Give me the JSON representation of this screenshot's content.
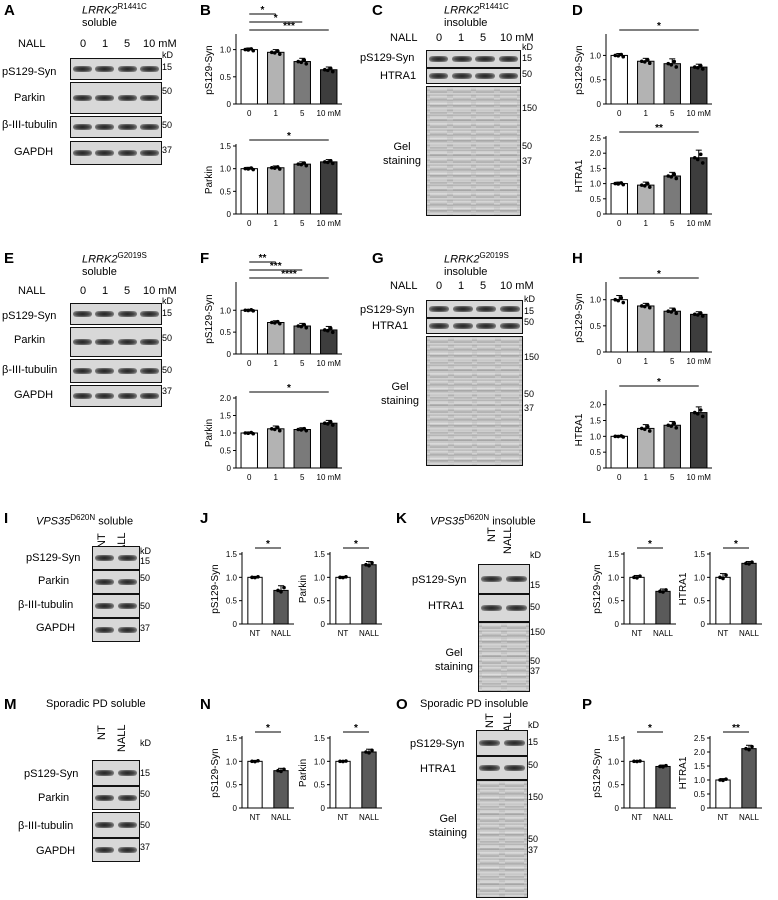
{
  "letters": [
    "A",
    "B",
    "C",
    "D",
    "E",
    "F",
    "G",
    "H",
    "I",
    "J",
    "K",
    "L",
    "M",
    "N",
    "O",
    "P"
  ],
  "panelA": {
    "title_gene": "LRRK2",
    "title_sup": "R1441C",
    "title_sub": "soluble",
    "nall": "NALL",
    "conc": [
      "0",
      "1",
      "5",
      "10 mM"
    ],
    "rows": [
      "pS129-Syn",
      "Parkin",
      "β-III-tubulin",
      "GAPDH"
    ],
    "kd": "kD",
    "mw": [
      "15",
      "50",
      "50",
      "37"
    ]
  },
  "panelC": {
    "title_gene": "LRRK2",
    "title_sup": "R1441C",
    "title_sub": "insoluble",
    "nall": "NALL",
    "conc": [
      "0",
      "1",
      "5",
      "10 mM"
    ],
    "rows": [
      "pS129-Syn",
      "HTRA1"
    ],
    "kd": "kD",
    "mw": [
      "15",
      "50"
    ],
    "gel_label": "Gel staining",
    "gel_mw": [
      "150",
      "50",
      "37"
    ]
  },
  "panelE": {
    "title_gene": "LRRK2",
    "title_sup": "G2019S",
    "title_sub": "soluble",
    "nall": "NALL",
    "conc": [
      "0",
      "1",
      "5",
      "10 mM"
    ],
    "rows": [
      "pS129-Syn",
      "Parkin",
      "β-III-tubulin",
      "GAPDH"
    ],
    "kd": "kD",
    "mw": [
      "15",
      "50",
      "50",
      "37"
    ]
  },
  "panelG": {
    "title_gene": "LRRK2",
    "title_sup": "G2019S",
    "title_sub": "insoluble",
    "nall": "NALL",
    "conc": [
      "0",
      "1",
      "5",
      "10 mM"
    ],
    "rows": [
      "pS129-Syn",
      "HTRA1"
    ],
    "kd": "kD",
    "mw": [
      "15",
      "50"
    ],
    "gel_label": "Gel staining",
    "gel_mw": [
      "150",
      "50",
      "37"
    ]
  },
  "panelI": {
    "title_gene": "VPS35",
    "title_sup": "D620N",
    "title_sub": "soluble",
    "lanes": [
      "NT",
      "NALL"
    ],
    "rows": [
      "pS129-Syn",
      "Parkin",
      "β-III-tubulin",
      "GAPDH"
    ],
    "kd": "kD",
    "mw": [
      "15",
      "50",
      "50",
      "37"
    ]
  },
  "panelK": {
    "title_gene": "VPS35",
    "title_sup": "D620N",
    "title_sub": "insoluble",
    "lanes": [
      "NT",
      "NALL"
    ],
    "rows": [
      "pS129-Syn",
      "HTRA1"
    ],
    "kd": "kD",
    "mw": [
      "15",
      "50"
    ],
    "gel_label": "Gel staining",
    "gel_mw": [
      "150",
      "50",
      "37"
    ]
  },
  "panelM": {
    "title": "Sporadic PD soluble",
    "lanes": [
      "NT",
      "NALL"
    ],
    "rows": [
      "pS129-Syn",
      "Parkin",
      "β-III-tubulin",
      "GAPDH"
    ],
    "kd": "kD",
    "mw": [
      "15",
      "50",
      "50",
      "37"
    ]
  },
  "panelO": {
    "title": "Sporadic PD insoluble",
    "lanes": [
      "NT",
      "NALL"
    ],
    "rows": [
      "pS129-Syn",
      "HTRA1"
    ],
    "kd": "kD",
    "mw": [
      "15",
      "50"
    ],
    "gel_label": "Gel staining",
    "gel_mw": [
      "150",
      "50",
      "37"
    ]
  },
  "colors": {
    "bar_fills": [
      "#ffffff",
      "#b3b3b3",
      "#7a7a7a",
      "#3d3d3d"
    ],
    "nt_fill": "#ffffff",
    "nall_fill": "#5a5a5a"
  },
  "chart_data": [
    {
      "id": "B-top",
      "type": "bar",
      "categories": [
        "0",
        "1",
        "5",
        "10 mM"
      ],
      "values": [
        1.0,
        0.95,
        0.78,
        0.63
      ],
      "errors": [
        0.03,
        0.05,
        0.06,
        0.05
      ],
      "ylabel": "pS129-Syn",
      "ylim": [
        0,
        1.25
      ],
      "yticks": [
        "0",
        "0.5",
        "1.0"
      ],
      "yticks_v": [
        0,
        0.5,
        1.0
      ],
      "sig": [
        {
          "from": 0,
          "to": 1,
          "label": "*"
        },
        {
          "from": 0,
          "to": 2,
          "label": "*"
        },
        {
          "from": 0,
          "to": 3,
          "label": "***"
        }
      ]
    },
    {
      "id": "B-bot",
      "type": "bar",
      "categories": [
        "0",
        "1",
        "5",
        "10 mM"
      ],
      "values": [
        1.0,
        1.02,
        1.1,
        1.15
      ],
      "errors": [
        0.03,
        0.04,
        0.05,
        0.05
      ],
      "ylabel": "Parkin",
      "ylim": [
        0,
        1.5
      ],
      "yticks": [
        "0",
        "0.5",
        "1.0",
        "1.5"
      ],
      "yticks_v": [
        0,
        0.5,
        1.0,
        1.5
      ],
      "sig": [
        {
          "from": 0,
          "to": 3,
          "label": "*"
        }
      ]
    },
    {
      "id": "D-top",
      "type": "bar",
      "categories": [
        "0",
        "1",
        "5",
        "10 mM"
      ],
      "values": [
        1.0,
        0.88,
        0.83,
        0.76
      ],
      "errors": [
        0.04,
        0.06,
        0.1,
        0.06
      ],
      "ylabel": "pS129-Syn",
      "ylim": [
        0,
        1.4
      ],
      "yticks": [
        "0",
        "0.5",
        "1.0"
      ],
      "yticks_v": [
        0,
        0.5,
        1.0
      ],
      "sig": [
        {
          "from": 0,
          "to": 3,
          "label": "*"
        }
      ]
    },
    {
      "id": "D-bot",
      "type": "bar",
      "categories": [
        "0",
        "1",
        "5",
        "10 mM"
      ],
      "values": [
        1.0,
        0.95,
        1.25,
        1.85
      ],
      "errors": [
        0.05,
        0.1,
        0.12,
        0.25
      ],
      "ylabel": "HTRA1",
      "ylim": [
        0,
        2.5
      ],
      "yticks": [
        "0",
        "0.5",
        "1.0",
        "1.5",
        "2.0",
        "2.5"
      ],
      "yticks_v": [
        0,
        0.5,
        1.0,
        1.5,
        2.0,
        2.5
      ],
      "sig": [
        {
          "from": 0,
          "to": 3,
          "label": "**"
        }
      ]
    },
    {
      "id": "F-top",
      "type": "bar",
      "categories": [
        "0",
        "1",
        "5",
        "10 mM"
      ],
      "values": [
        1.0,
        0.72,
        0.64,
        0.55
      ],
      "errors": [
        0.02,
        0.04,
        0.06,
        0.08
      ],
      "ylabel": "pS129-Syn",
      "ylim": [
        0,
        1.6
      ],
      "yticks": [
        "0",
        "0.5",
        "1.0"
      ],
      "yticks_v": [
        0,
        0.5,
        1.0
      ],
      "sig": [
        {
          "from": 0,
          "to": 1,
          "label": "**"
        },
        {
          "from": 0,
          "to": 2,
          "label": "***"
        },
        {
          "from": 0,
          "to": 3,
          "label": "****"
        }
      ]
    },
    {
      "id": "F-bot",
      "type": "bar",
      "categories": [
        "0",
        "1",
        "5",
        "10 mM"
      ],
      "values": [
        1.0,
        1.12,
        1.1,
        1.28
      ],
      "errors": [
        0.03,
        0.08,
        0.05,
        0.08
      ],
      "ylabel": "Parkin",
      "ylim": [
        0,
        2.0
      ],
      "yticks": [
        "0",
        "0.5",
        "1.0",
        "1.5",
        "2.0"
      ],
      "yticks_v": [
        0,
        0.5,
        1.0,
        1.5,
        2.0
      ],
      "sig": [
        {
          "from": 0,
          "to": 3,
          "label": "*"
        }
      ]
    },
    {
      "id": "H-top",
      "type": "bar",
      "categories": [
        "0",
        "1",
        "5",
        "10 mM"
      ],
      "values": [
        1.0,
        0.88,
        0.78,
        0.72
      ],
      "errors": [
        0.08,
        0.05,
        0.06,
        0.05
      ],
      "ylabel": "pS129-Syn",
      "ylim": [
        0,
        1.3
      ],
      "yticks": [
        "0",
        "0.5",
        "1.0"
      ],
      "yticks_v": [
        0,
        0.5,
        1.0
      ],
      "sig": [
        {
          "from": 0,
          "to": 3,
          "label": "*"
        }
      ]
    },
    {
      "id": "H-bot",
      "type": "bar",
      "categories": [
        "0",
        "1",
        "5",
        "10 mM"
      ],
      "values": [
        1.0,
        1.25,
        1.35,
        1.75
      ],
      "errors": [
        0.03,
        0.12,
        0.12,
        0.18
      ],
      "ylabel": "HTRA1",
      "ylim": [
        0,
        2.4
      ],
      "yticks": [
        "0",
        "0.5",
        "1.0",
        "1.5",
        "2.0"
      ],
      "yticks_v": [
        0,
        0.5,
        1.0,
        1.5,
        2.0
      ],
      "sig": [
        {
          "from": 0,
          "to": 3,
          "label": "*"
        }
      ]
    },
    {
      "id": "J-left",
      "type": "bar",
      "categories": [
        "NT",
        "NALL"
      ],
      "values": [
        1.0,
        0.72
      ],
      "errors": [
        0.02,
        0.1
      ],
      "ylabel": "pS129-Syn",
      "ylim": [
        0,
        1.5
      ],
      "yticks": [
        "0",
        "0.5",
        "1.0",
        "1.5"
      ],
      "yticks_v": [
        0,
        0.5,
        1.0,
        1.5
      ],
      "sig": [
        {
          "from": 0,
          "to": 1,
          "label": "*"
        }
      ]
    },
    {
      "id": "J-right",
      "type": "bar",
      "categories": [
        "NT",
        "NALL"
      ],
      "values": [
        1.0,
        1.27
      ],
      "errors": [
        0.02,
        0.07
      ],
      "ylabel": "Parkin",
      "ylim": [
        0,
        1.5
      ],
      "yticks": [
        "0",
        "0.5",
        "1.0",
        "1.5"
      ],
      "yticks_v": [
        0,
        0.5,
        1.0,
        1.5
      ],
      "sig": [
        {
          "from": 0,
          "to": 1,
          "label": "*"
        }
      ]
    },
    {
      "id": "L-left",
      "type": "bar",
      "categories": [
        "NT",
        "NALL"
      ],
      "values": [
        1.0,
        0.7
      ],
      "errors": [
        0.04,
        0.05
      ],
      "ylabel": "pS129-Syn",
      "ylim": [
        0,
        1.5
      ],
      "yticks": [
        "0",
        "0.5",
        "1.0",
        "1.5"
      ],
      "yticks_v": [
        0,
        0.5,
        1.0,
        1.5
      ],
      "sig": [
        {
          "from": 0,
          "to": 1,
          "label": "*"
        }
      ]
    },
    {
      "id": "L-right",
      "type": "bar",
      "categories": [
        "NT",
        "NALL"
      ],
      "values": [
        1.0,
        1.3
      ],
      "errors": [
        0.08,
        0.04
      ],
      "ylabel": "HTRA1",
      "ylim": [
        0,
        1.5
      ],
      "yticks": [
        "0",
        "0.5",
        "1.0",
        "1.5"
      ],
      "yticks_v": [
        0,
        0.5,
        1.0,
        1.5
      ],
      "sig": [
        {
          "from": 0,
          "to": 1,
          "label": "*"
        }
      ]
    },
    {
      "id": "N-left",
      "type": "bar",
      "categories": [
        "NT",
        "NALL"
      ],
      "values": [
        1.0,
        0.8
      ],
      "errors": [
        0.02,
        0.05
      ],
      "ylabel": "pS129-Syn",
      "ylim": [
        0,
        1.5
      ],
      "yticks": [
        "0",
        "0.5",
        "1.0",
        "1.5"
      ],
      "yticks_v": [
        0,
        0.5,
        1.0,
        1.5
      ],
      "sig": [
        {
          "from": 0,
          "to": 1,
          "label": "*"
        }
      ]
    },
    {
      "id": "N-right",
      "type": "bar",
      "categories": [
        "NT",
        "NALL"
      ],
      "values": [
        1.0,
        1.2
      ],
      "errors": [
        0.01,
        0.06
      ],
      "ylabel": "Parkin",
      "ylim": [
        0,
        1.5
      ],
      "yticks": [
        "0",
        "0.5",
        "1.0",
        "1.5"
      ],
      "yticks_v": [
        0,
        0.5,
        1.0,
        1.5
      ],
      "sig": [
        {
          "from": 0,
          "to": 1,
          "label": "*"
        }
      ]
    },
    {
      "id": "P-left",
      "type": "bar",
      "categories": [
        "NT",
        "NALL"
      ],
      "values": [
        1.0,
        0.89
      ],
      "errors": [
        0.01,
        0.03
      ],
      "ylabel": "pS129-Syn",
      "ylim": [
        0,
        1.5
      ],
      "yticks": [
        "0",
        "0.5",
        "1.0",
        "1.5"
      ],
      "yticks_v": [
        0,
        0.5,
        1.0,
        1.5
      ],
      "sig": [
        {
          "from": 0,
          "to": 1,
          "label": "*"
        }
      ]
    },
    {
      "id": "P-right",
      "type": "bar",
      "categories": [
        "NT",
        "NALL"
      ],
      "values": [
        1.0,
        2.12
      ],
      "errors": [
        0.05,
        0.12
      ],
      "ylabel": "HTRA1",
      "ylim": [
        0,
        2.5
      ],
      "yticks": [
        "0",
        "0.5",
        "1.0",
        "1.5",
        "2.0",
        "2.5"
      ],
      "yticks_v": [
        0,
        0.5,
        1.0,
        1.5,
        2.0,
        2.5
      ],
      "sig": [
        {
          "from": 0,
          "to": 1,
          "label": "**"
        }
      ]
    }
  ]
}
